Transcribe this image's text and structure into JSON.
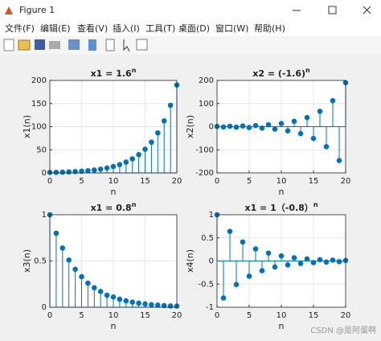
{
  "window": {
    "title": "Figure 1",
    "menu": [
      "文件(F)",
      "编辑(E)",
      "查看(V)",
      "插入(I)",
      "工具(T)",
      "桌面(D)",
      "窗口(W)",
      "帮助(H)"
    ]
  },
  "watermark": "CSDN @是阿蛋啊",
  "chart_data": [
    {
      "type": "stem",
      "title": "x1 = 1.6",
      "title_sup": "n",
      "xlabel": "n",
      "ylabel": "x1(n)",
      "color": "#0072bd",
      "grid": true,
      "x": [
        0,
        1,
        2,
        3,
        4,
        5,
        6,
        7,
        8,
        9,
        10,
        11,
        12,
        13,
        14,
        15,
        16,
        17,
        18,
        19,
        20
      ],
      "values": [
        1,
        1.3,
        1.7,
        2.2,
        2.9,
        3.7,
        4.8,
        6.3,
        8.2,
        10.6,
        13.8,
        17.9,
        23.3,
        30.3,
        39.4,
        51.2,
        66.5,
        86.5,
        112.5,
        146.2,
        190.1
      ],
      "xlim": [
        0,
        20
      ],
      "ylim": [
        0,
        200
      ],
      "xticks": [
        0,
        5,
        10,
        15,
        20
      ],
      "yticks": [
        0,
        50,
        100,
        150,
        200
      ]
    },
    {
      "type": "stem",
      "title": "x2 = (-1.6)",
      "title_sup": "n",
      "xlabel": "n",
      "ylabel": "x2(n)",
      "color": "#0072bd",
      "grid": true,
      "x": [
        0,
        1,
        2,
        3,
        4,
        5,
        6,
        7,
        8,
        9,
        10,
        11,
        12,
        13,
        14,
        15,
        16,
        17,
        18,
        19,
        20
      ],
      "values": [
        1,
        -1.3,
        1.7,
        -2.2,
        2.9,
        -3.7,
        4.8,
        -6.3,
        8.2,
        -10.6,
        13.8,
        -17.9,
        23.3,
        -30.3,
        39.4,
        -51.2,
        66.5,
        -86.5,
        112.5,
        -146.2,
        190.1
      ],
      "xlim": [
        0,
        20
      ],
      "ylim": [
        -200,
        200
      ],
      "xticks": [
        0,
        5,
        10,
        15,
        20
      ],
      "yticks": [
        -200,
        -100,
        0,
        100,
        200
      ]
    },
    {
      "type": "stem",
      "title": "x1 = 0.8",
      "title_sup": "n",
      "xlabel": "n",
      "ylabel": "x3(n)",
      "color": "#0072bd",
      "grid": true,
      "x": [
        0,
        1,
        2,
        3,
        4,
        5,
        6,
        7,
        8,
        9,
        10,
        11,
        12,
        13,
        14,
        15,
        16,
        17,
        18,
        19,
        20
      ],
      "values": [
        1,
        0.8,
        0.64,
        0.51,
        0.41,
        0.33,
        0.26,
        0.21,
        0.17,
        0.13,
        0.11,
        0.086,
        0.069,
        0.055,
        0.044,
        0.035,
        0.028,
        0.023,
        0.018,
        0.014,
        0.012
      ],
      "xlim": [
        0,
        20
      ],
      "ylim": [
        0,
        1
      ],
      "xticks": [
        0,
        5,
        10,
        15,
        20
      ],
      "yticks": [
        0,
        0.5,
        1
      ]
    },
    {
      "type": "stem",
      "title": "x1 = 1（-0.8）",
      "title_sup": "n",
      "xlabel": "n",
      "ylabel": "x4(n)",
      "color": "#0072bd",
      "grid": true,
      "x": [
        0,
        1,
        2,
        3,
        4,
        5,
        6,
        7,
        8,
        9,
        10,
        11,
        12,
        13,
        14,
        15,
        16,
        17,
        18,
        19,
        20
      ],
      "values": [
        1,
        -0.8,
        0.64,
        -0.51,
        0.41,
        -0.33,
        0.26,
        -0.21,
        0.17,
        -0.13,
        0.11,
        -0.086,
        0.069,
        -0.055,
        0.044,
        -0.035,
        0.028,
        -0.023,
        0.018,
        -0.014,
        0.012
      ],
      "xlim": [
        0,
        20
      ],
      "ylim": [
        -1,
        1
      ],
      "xticks": [
        0,
        5,
        10,
        15,
        20
      ],
      "yticks": [
        -1,
        -0.5,
        0,
        0.5,
        1
      ]
    }
  ]
}
